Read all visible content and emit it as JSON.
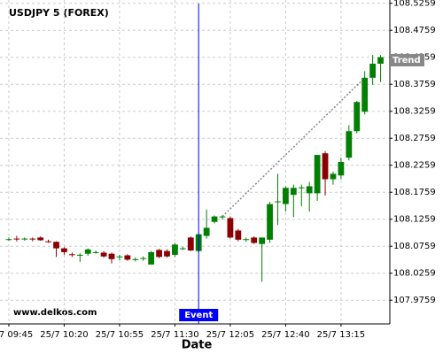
{
  "chart_data": {
    "type": "candlestick",
    "title": "USDJPY 5 (FOREX)",
    "watermark": "www.delkos.com",
    "x_label": "Date",
    "x": [
      "25/7 09:45",
      "25/7 09:50",
      "25/7 09:55",
      "25/7 10:00",
      "25/7 10:05",
      "25/7 10:10",
      "25/7 10:15",
      "25/7 10:20",
      "25/7 10:25",
      "25/7 10:30",
      "25/7 10:35",
      "25/7 10:40",
      "25/7 10:45",
      "25/7 10:50",
      "25/7 10:55",
      "25/7 11:00",
      "25/7 11:05",
      "25/7 11:10",
      "25/7 11:15",
      "25/7 11:20",
      "25/7 11:25",
      "25/7 11:30",
      "25/7 11:35",
      "25/7 11:40",
      "25/7 11:45",
      "25/7 11:50",
      "25/7 11:55",
      "25/7 12:00",
      "25/7 12:05",
      "25/7 12:10",
      "25/7 12:15",
      "25/7 12:20",
      "25/7 12:25",
      "25/7 12:30",
      "25/7 12:35",
      "25/7 12:40",
      "25/7 12:45",
      "25/7 12:50",
      "25/7 12:55",
      "25/7 13:00",
      "25/7 13:05",
      "25/7 13:10",
      "25/7 13:15",
      "25/7 13:20",
      "25/7 13:25",
      "25/7 13:30",
      "25/7 13:35",
      "25/7 13:40"
    ],
    "xticks": [
      "25/7 09:45",
      "25/7 10:20",
      "25/7 10:55",
      "25/7 11:30",
      "25/7 12:05",
      "25/7 12:40",
      "25/7 13:15"
    ],
    "open": [
      108.088,
      108.09,
      108.089,
      108.09,
      108.092,
      108.085,
      108.084,
      108.072,
      108.061,
      108.059,
      108.062,
      108.065,
      108.064,
      108.062,
      108.056,
      108.059,
      108.052,
      108.053,
      108.042,
      108.069,
      108.067,
      108.06,
      108.072,
      108.092,
      108.067,
      108.095,
      108.121,
      108.13,
      108.128,
      108.105,
      108.088,
      108.092,
      108.08,
      108.088,
      108.158,
      108.154,
      108.171,
      108.184,
      108.174,
      108.174,
      108.248,
      108.2,
      108.207,
      108.24,
      108.289,
      108.325,
      108.388,
      108.414
    ],
    "high": [
      108.092,
      108.095,
      108.092,
      108.092,
      108.094,
      108.088,
      108.085,
      108.074,
      108.064,
      108.063,
      108.072,
      108.068,
      108.067,
      108.064,
      108.06,
      108.061,
      108.055,
      108.057,
      108.067,
      108.071,
      108.07,
      108.082,
      108.075,
      108.094,
      108.1,
      108.144,
      108.133,
      108.133,
      108.131,
      108.108,
      108.092,
      108.094,
      108.092,
      108.158,
      108.21,
      108.187,
      108.19,
      108.19,
      108.195,
      108.245,
      108.252,
      108.214,
      108.24,
      108.3,
      108.345,
      108.4,
      108.43,
      108.43
    ],
    "low": [
      108.086,
      108.085,
      108.086,
      108.085,
      108.086,
      108.082,
      108.056,
      108.06,
      108.056,
      108.047,
      108.058,
      108.062,
      108.055,
      108.044,
      108.05,
      108.049,
      108.048,
      108.049,
      108.042,
      108.054,
      108.055,
      108.056,
      108.069,
      108.067,
      108.065,
      108.09,
      108.118,
      108.125,
      108.09,
      108.085,
      108.084,
      108.08,
      108.01,
      108.082,
      108.115,
      108.14,
      108.13,
      108.15,
      108.14,
      108.16,
      108.17,
      108.19,
      108.2,
      108.235,
      108.285,
      108.32,
      108.375,
      108.38
    ],
    "close": [
      108.089,
      108.089,
      108.09,
      108.089,
      108.087,
      108.084,
      108.072,
      108.065,
      108.06,
      108.06,
      108.07,
      108.065,
      108.057,
      108.052,
      108.057,
      108.051,
      108.052,
      108.054,
      108.065,
      108.056,
      108.057,
      108.079,
      108.072,
      108.068,
      108.098,
      108.11,
      108.131,
      108.131,
      108.092,
      108.088,
      108.089,
      108.082,
      108.092,
      108.154,
      108.159,
      108.184,
      108.184,
      108.185,
      108.187,
      108.245,
      108.2,
      108.21,
      108.232,
      108.289,
      108.343,
      108.388,
      108.414,
      108.426
    ],
    "up_color": "#008000",
    "down_color": "#8b0000",
    "ylim": [
      107.932,
      108.532
    ],
    "yticks": [
      107.9759,
      108.0259,
      108.0759,
      108.1259,
      108.1759,
      108.2259,
      108.2759,
      108.3259,
      108.3759,
      108.4259,
      108.4759,
      108.5259
    ],
    "grid": true,
    "event": {
      "label": "Event",
      "x": "25/7 11:45",
      "color": "#0000ff"
    },
    "trend": {
      "label": "Trend",
      "x": [
        "25/7 12:00",
        "25/7 13:30"
      ],
      "values": [
        108.131,
        108.388
      ]
    }
  }
}
